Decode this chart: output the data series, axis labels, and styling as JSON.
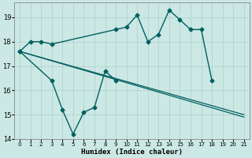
{
  "title": "",
  "xlabel": "Humidex (Indice chaleur)",
  "ylabel": "",
  "xlim": [
    -0.5,
    21.5
  ],
  "ylim": [
    14.0,
    19.6
  ],
  "yticks": [
    14,
    15,
    16,
    17,
    18,
    19
  ],
  "xticks": [
    0,
    1,
    2,
    3,
    4,
    5,
    6,
    7,
    8,
    9,
    10,
    11,
    12,
    13,
    14,
    15,
    16,
    17,
    18,
    19,
    20,
    21
  ],
  "background_color": "#cce8e4",
  "grid_color": "#aacfcc",
  "line_color": "#006060",
  "series": [
    {
      "x": [
        0,
        1,
        2,
        3,
        9,
        10,
        11,
        12,
        13,
        14,
        15,
        16,
        17,
        18
      ],
      "y": [
        17.6,
        18.0,
        18.0,
        17.9,
        18.5,
        18.6,
        19.1,
        18.0,
        18.3,
        19.3,
        18.9,
        18.5,
        18.5,
        16.4
      ],
      "style": "-",
      "marker": "D",
      "markersize": 2.5,
      "linewidth": 1.0
    },
    {
      "x": [
        0,
        3,
        4,
        5,
        6,
        7,
        8,
        9
      ],
      "y": [
        17.6,
        16.4,
        15.2,
        14.2,
        15.1,
        15.3,
        16.8,
        16.4
      ],
      "style": "-",
      "marker": "D",
      "markersize": 2.5,
      "linewidth": 1.0
    },
    {
      "x": [
        0,
        21
      ],
      "y": [
        17.6,
        14.9
      ],
      "style": "-",
      "marker": null,
      "markersize": 0,
      "linewidth": 0.9
    },
    {
      "x": [
        0,
        21
      ],
      "y": [
        17.6,
        15.0
      ],
      "style": "-",
      "marker": null,
      "markersize": 0,
      "linewidth": 0.9
    }
  ]
}
